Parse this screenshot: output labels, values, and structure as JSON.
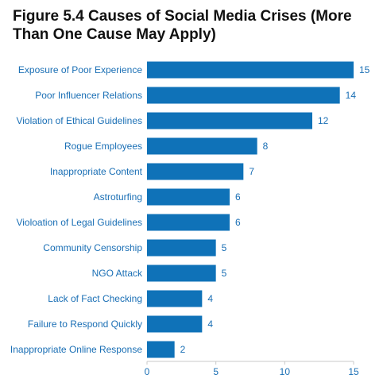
{
  "chart_data": {
    "type": "bar",
    "orientation": "horizontal",
    "title": "Figure 5.4 Causes of Social Media Crises (More Than One Cause May Apply)",
    "xlabel": "",
    "ylabel": "",
    "categories": [
      "Exposure of Poor Experience",
      "Poor Influencer Relations",
      "Violation of Ethical Guidelines",
      "Rogue Employees",
      "Inappropriate Content",
      "Astroturfing",
      "Violoation of Legal Guidelines",
      "Community Censorship",
      "NGO Attack",
      "Lack of Fact Checking",
      "Failure to Respond Quickly",
      "Inappropriate Online Response"
    ],
    "values": [
      15,
      14,
      12,
      8,
      7,
      6,
      6,
      5,
      5,
      4,
      4,
      2
    ],
    "xlim": [
      0,
      15
    ],
    "xticks": [
      0,
      5,
      10,
      15
    ],
    "data_labels": true,
    "grid": false,
    "legend": "none",
    "colors": {
      "bar": "#0f72b8",
      "label": "#1a6fb5",
      "axis": "#c8c8c8",
      "title": "#111111"
    }
  }
}
